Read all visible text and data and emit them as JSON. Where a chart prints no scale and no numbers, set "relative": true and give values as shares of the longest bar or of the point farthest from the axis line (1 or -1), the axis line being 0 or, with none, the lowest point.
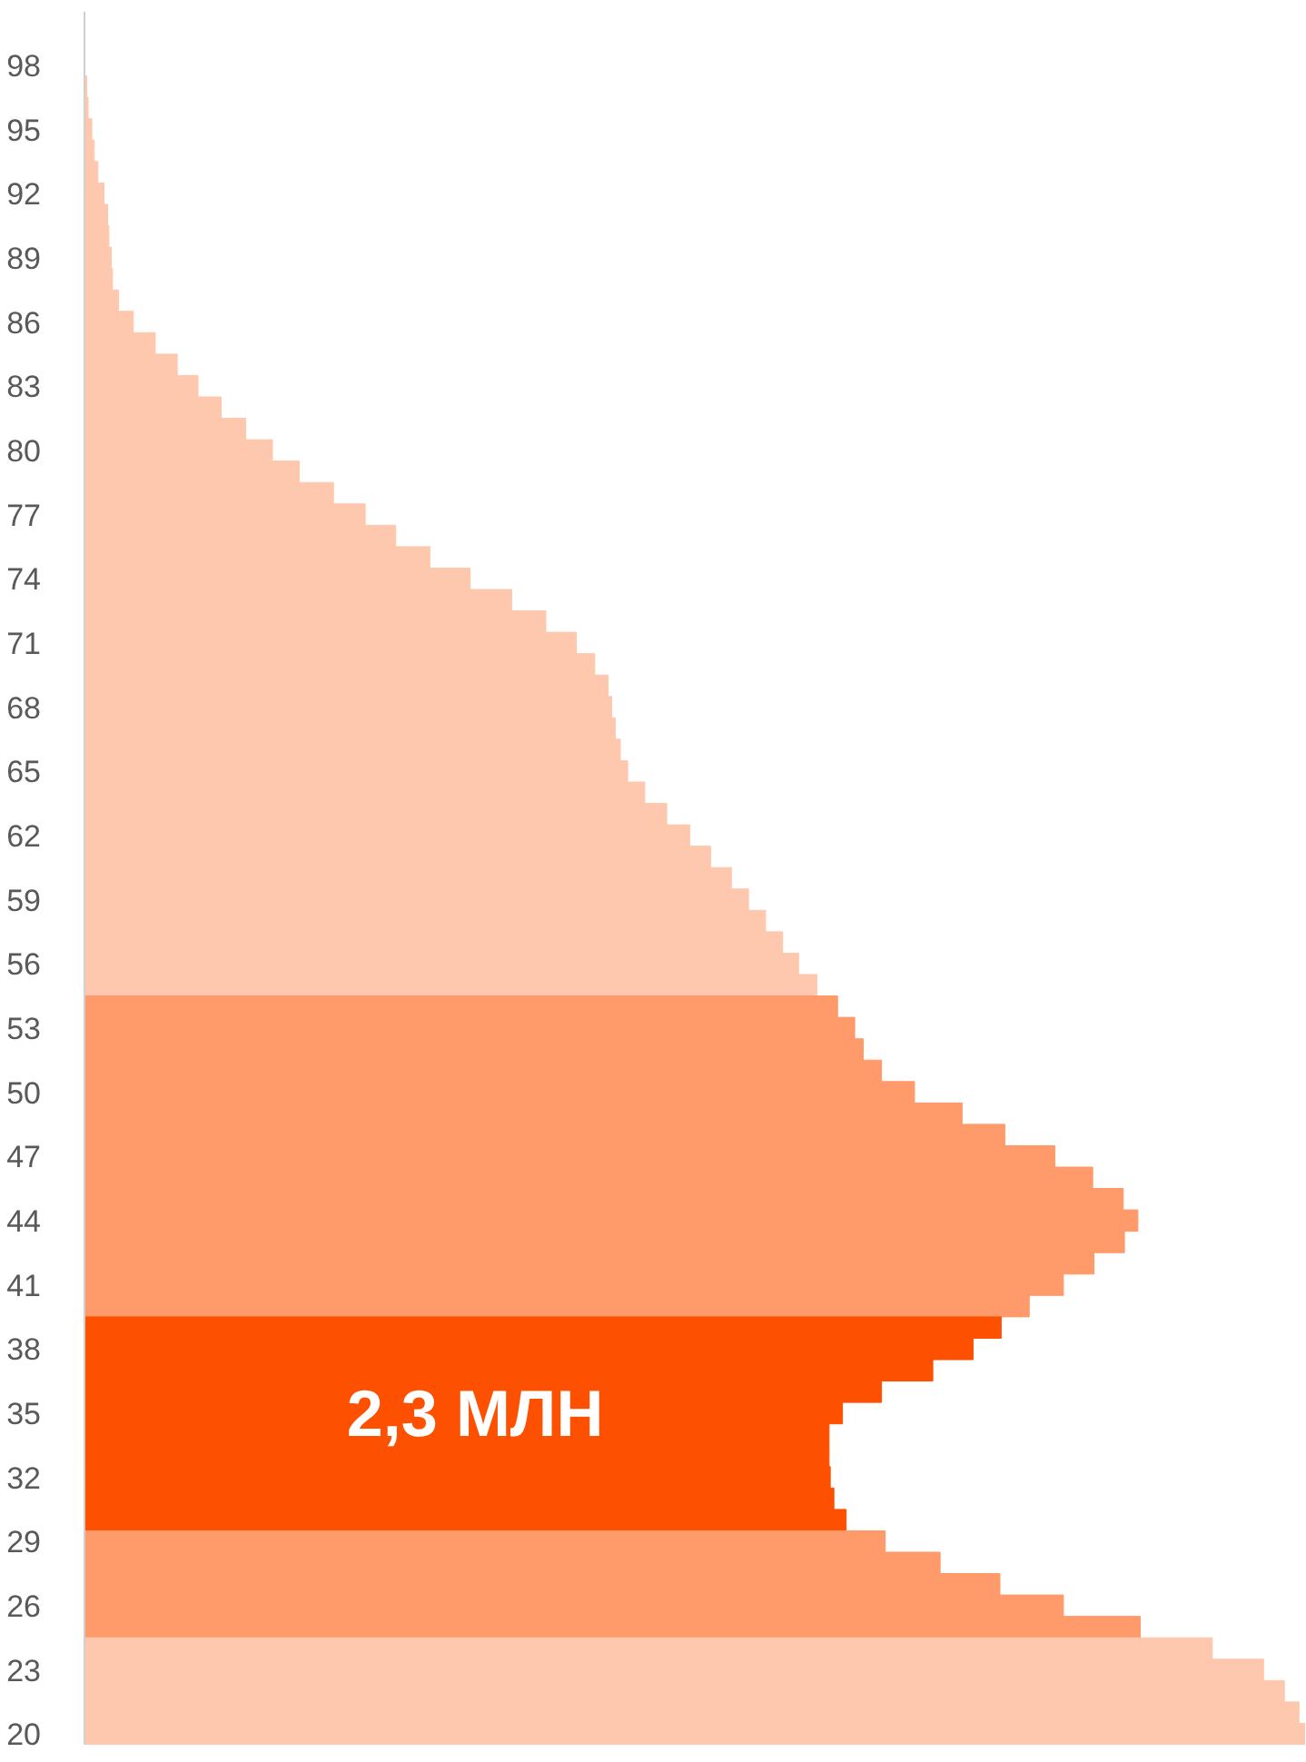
{
  "chart_data": {
    "type": "bar",
    "orientation": "horizontal",
    "relative": true,
    "categories": [
      null,
      null,
      "98",
      null,
      null,
      "95",
      null,
      null,
      "92",
      null,
      null,
      "89",
      null,
      null,
      "86",
      null,
      null,
      "83",
      null,
      null,
      "80",
      null,
      null,
      "77",
      null,
      null,
      "74",
      null,
      null,
      "71",
      null,
      null,
      "68",
      null,
      null,
      "65",
      null,
      null,
      "62",
      null,
      null,
      "59",
      null,
      null,
      "56",
      null,
      null,
      "53",
      null,
      null,
      "50",
      null,
      null,
      "47",
      null,
      null,
      "44",
      null,
      null,
      "41",
      null,
      null,
      "38",
      null,
      null,
      "35",
      null,
      null,
      "32",
      null,
      null,
      "29",
      null,
      null,
      "26",
      null,
      null,
      "23",
      null,
      null,
      "20"
    ],
    "values": [
      null,
      null,
      null,
      0.002,
      0.003,
      0.006,
      0.008,
      0.011,
      0.016,
      0.019,
      0.02,
      0.022,
      0.023,
      0.028,
      0.04,
      0.058,
      0.076,
      0.093,
      0.112,
      0.132,
      0.154,
      0.176,
      0.204,
      0.23,
      0.255,
      0.283,
      0.316,
      0.35,
      0.378,
      0.403,
      0.418,
      0.429,
      0.432,
      0.435,
      0.439,
      0.445,
      0.459,
      0.477,
      0.496,
      0.513,
      0.53,
      0.544,
      0.558,
      0.572,
      0.585,
      0.6,
      0.617,
      0.631,
      0.638,
      0.653,
      0.68,
      0.719,
      0.754,
      0.795,
      0.826,
      0.851,
      0.863,
      0.852,
      0.827,
      0.802,
      0.774,
      0.751,
      0.728,
      0.695,
      0.653,
      0.621,
      0.61,
      0.61,
      0.611,
      0.614,
      0.624,
      0.656,
      0.701,
      0.75,
      0.802,
      0.865,
      0.924,
      0.966,
      0.983,
      0.995,
      1
    ],
    "colors": [
      "#fec8ae",
      "#fec8ae",
      "#fec8ae",
      "#fec8ae",
      "#fec8ae",
      "#fec8ae",
      "#fec8ae",
      "#fec8ae",
      "#fec8ae",
      "#fec8ae",
      "#fec8ae",
      "#fec8ae",
      "#fec8ae",
      "#fec8ae",
      "#fec8ae",
      "#fec8ae",
      "#fec8ae",
      "#fec8ae",
      "#fec8ae",
      "#fec8ae",
      "#fec8ae",
      "#fec8ae",
      "#fec8ae",
      "#fec8ae",
      "#fec8ae",
      "#fec8ae",
      "#fec8ae",
      "#fec8ae",
      "#fec8ae",
      "#fec8ae",
      "#fec8ae",
      "#fec8ae",
      "#fec8ae",
      "#fec8ae",
      "#fec8ae",
      "#fec8ae",
      "#fec8ae",
      "#fec8ae",
      "#fec8ae",
      "#fec8ae",
      "#fec8ae",
      "#fec8ae",
      "#fec8ae",
      "#fec8ae",
      "#fec8ae",
      "#fec8ae",
      "#ff9a6a",
      "#ff9a6a",
      "#ff9a6a",
      "#ff9a6a",
      "#ff9a6a",
      "#ff9a6a",
      "#ff9a6a",
      "#ff9a6a",
      "#ff9a6a",
      "#ff9a6a",
      "#ff9a6a",
      "#ff9a6a",
      "#ff9a6a",
      "#ff9a6a",
      "#ff9a6a",
      "#fd5000",
      "#fd5000",
      "#fd5000",
      "#fd5000",
      "#fd5000",
      "#fd5000",
      "#fd5000",
      "#fd5000",
      "#fd5000",
      "#fd5000",
      "#ff9a6a",
      "#ff9a6a",
      "#ff9a6a",
      "#ff9a6a",
      "#ff9a6a",
      "#fec8ae",
      "#fec8ae",
      "#fec8ae",
      "#fec8ae",
      "#fec8ae"
    ],
    "annotations": [
      {
        "text": "2,3 МЛН",
        "x": 0.32,
        "y": "35"
      }
    ]
  }
}
